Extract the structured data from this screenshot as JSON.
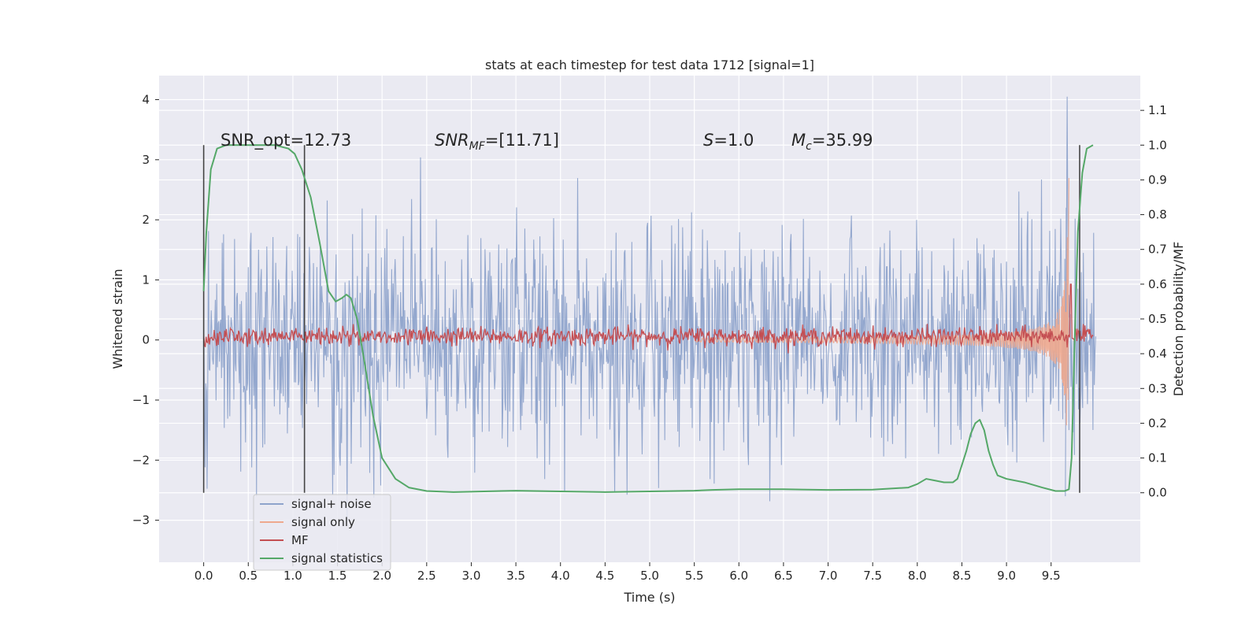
{
  "chart_data": {
    "type": "line",
    "title": "stats at each timestep for test data 1712 [signal=1]",
    "xlabel": "Time (s)",
    "ylabel_left": "Whitened strain",
    "ylabel_right": "Detection probability/MF",
    "xlim": [
      -0.5,
      10.5
    ],
    "ylim_left": [
      -3.7,
      4.4
    ],
    "ylim_right": [
      -0.2,
      1.2
    ],
    "x_ticks": [
      "0.0",
      "0.5",
      "1.0",
      "1.5",
      "2.0",
      "2.5",
      "3.0",
      "3.5",
      "4.0",
      "4.5",
      "5.0",
      "5.5",
      "6.0",
      "6.5",
      "7.0",
      "7.5",
      "8.0",
      "8.5",
      "9.0",
      "9.5"
    ],
    "y_ticks_left": [
      "−3",
      "−2",
      "−1",
      "0",
      "1",
      "2",
      "3",
      "4"
    ],
    "y_ticks_right": [
      "0.0",
      "0.1",
      "0.2",
      "0.3",
      "0.4",
      "0.5",
      "0.6",
      "0.7",
      "0.8",
      "0.9",
      "1.0",
      "1.1"
    ],
    "grid": true,
    "legend_position": "lower-left",
    "colors": {
      "noise": "#8ea3cb",
      "signal": "#eea98e",
      "mf": "#c44e52",
      "stats": "#55a868",
      "background": "#eaeaf2",
      "vline": "#444444"
    },
    "annotations": {
      "snr_opt": "SNR_opt=12.73",
      "snr_mf_base": "SNR",
      "snr_mf_sub": "MF",
      "snr_mf_value": "=[11.71]",
      "s_base": "S",
      "s_value": "=1.0",
      "mc_base": "M",
      "mc_sub": "c",
      "mc_value": "=35.99"
    },
    "vertical_lines_s": [
      0.0,
      1.13,
      9.82
    ],
    "series": [
      {
        "name": "signal+ noise",
        "axis": "left",
        "description_values": {
          "x_range": [
            0.0,
            10.0
          ],
          "approx_std": 0.95,
          "peak_max": 4.05
        }
      },
      {
        "name": "signal only",
        "axis": "left",
        "chirp_end_s": 9.7,
        "chirp_peak": 2.8
      },
      {
        "name": "MF",
        "axis": "right",
        "baseline": 0.45,
        "peak": {
          "x": 9.72,
          "y": 0.6
        }
      },
      {
        "name": "signal statistics",
        "axis": "right",
        "x": [
          0.0,
          0.03,
          0.08,
          0.15,
          0.25,
          0.4,
          0.6,
          0.8,
          0.95,
          1.02,
          1.1,
          1.2,
          1.3,
          1.4,
          1.48,
          1.55,
          1.6,
          1.65,
          1.72,
          1.8,
          1.9,
          2.0,
          2.15,
          2.3,
          2.5,
          2.8,
          3.0,
          3.5,
          4.0,
          4.5,
          5.0,
          5.5,
          5.7,
          6.0,
          6.5,
          7.0,
          7.5,
          7.9,
          8.0,
          8.1,
          8.2,
          8.3,
          8.4,
          8.45,
          8.5,
          8.55,
          8.6,
          8.65,
          8.7,
          8.75,
          8.8,
          8.85,
          8.9,
          9.0,
          9.2,
          9.4,
          9.55,
          9.65,
          9.7,
          9.73,
          9.76,
          9.8,
          9.85,
          9.9,
          9.97
        ],
        "y": [
          0.58,
          0.75,
          0.93,
          0.99,
          1.0,
          1.0,
          1.0,
          1.0,
          0.99,
          0.975,
          0.93,
          0.85,
          0.72,
          0.58,
          0.55,
          0.56,
          0.57,
          0.56,
          0.5,
          0.38,
          0.22,
          0.1,
          0.04,
          0.015,
          0.005,
          0.002,
          0.003,
          0.006,
          0.004,
          0.002,
          0.004,
          0.006,
          0.008,
          0.01,
          0.01,
          0.008,
          0.009,
          0.015,
          0.025,
          0.04,
          0.035,
          0.03,
          0.03,
          0.04,
          0.08,
          0.12,
          0.17,
          0.2,
          0.21,
          0.18,
          0.12,
          0.08,
          0.05,
          0.04,
          0.03,
          0.015,
          0.005,
          0.005,
          0.01,
          0.1,
          0.4,
          0.75,
          0.92,
          0.99,
          1.0
        ]
      }
    ]
  }
}
